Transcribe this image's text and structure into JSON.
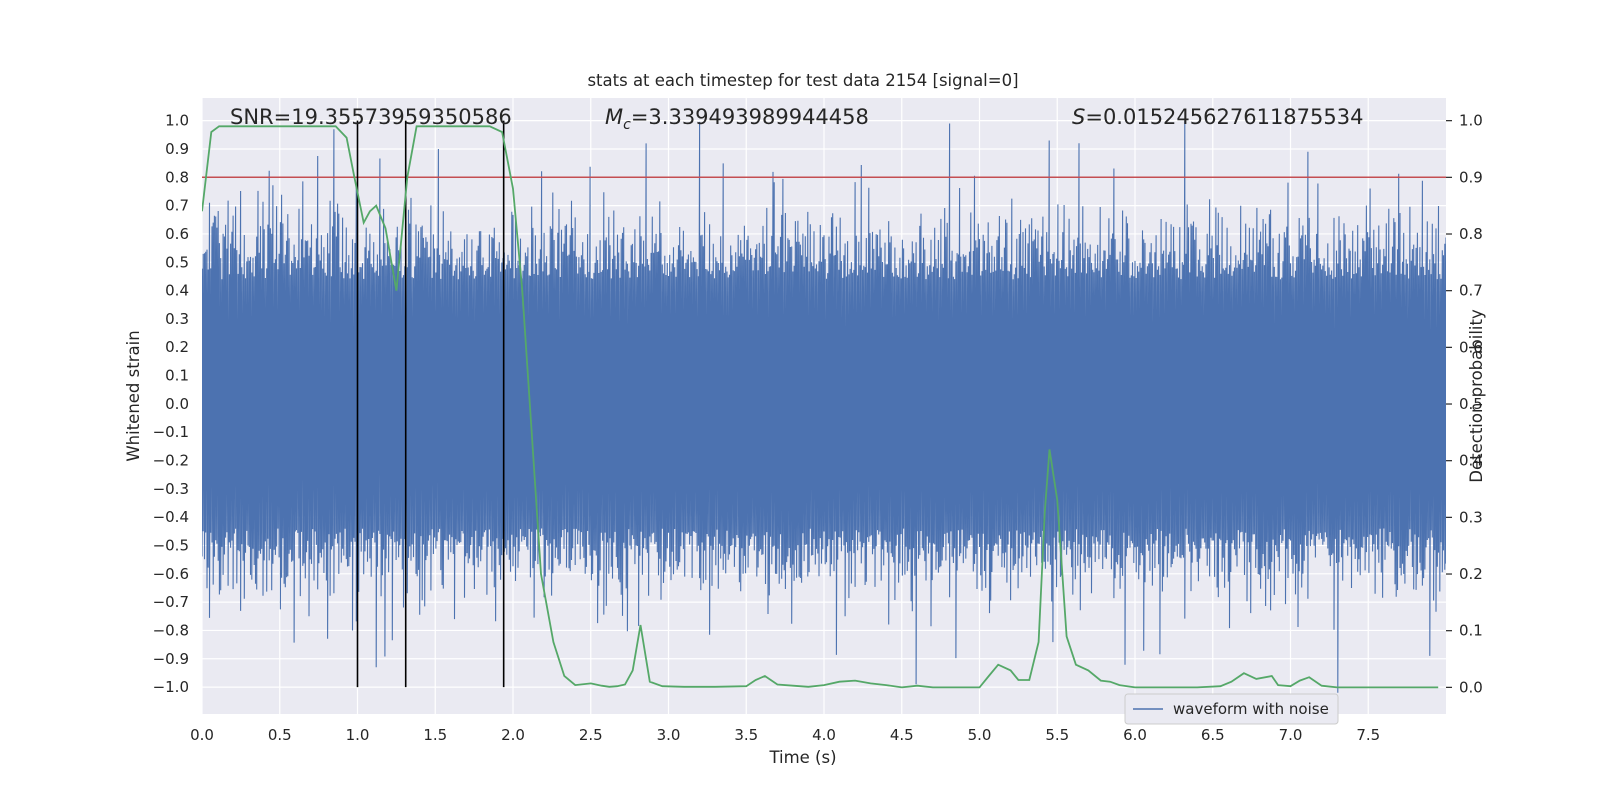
{
  "colors": {
    "background": "#eaeaf2",
    "grid": "#ffffff",
    "waveform": "#4c72b0",
    "probability": "#55a868",
    "threshold": "#c44e52",
    "markers": "#000000"
  },
  "chart_data": {
    "type": "line",
    "title": "stats at each timestep for test data 2154 [signal=0]",
    "xlabel": "Time (s)",
    "ylabel_left": "Whitened strain",
    "ylabel_right": "Detection probability",
    "xlim": [
      0.0,
      8.0
    ],
    "ylim_left": [
      -1.095,
      1.08
    ],
    "ylim_right": [
      -0.047,
      1.04
    ],
    "x_ticks": [
      "0.0",
      "0.5",
      "1.0",
      "1.5",
      "2.0",
      "2.5",
      "3.0",
      "3.5",
      "4.0",
      "4.5",
      "5.0",
      "5.5",
      "6.0",
      "6.5",
      "7.0",
      "7.5"
    ],
    "left_ticks": [
      "1.0",
      "0.9",
      "0.8",
      "0.7",
      "0.6",
      "0.5",
      "0.4",
      "0.3",
      "0.2",
      "0.1",
      "0.0",
      "−0.1",
      "−0.2",
      "−0.3",
      "−0.4",
      "−0.5",
      "−0.6",
      "−0.7",
      "−0.8",
      "−0.9",
      "−1.0"
    ],
    "right_ticks": [
      "1.0",
      "0.9",
      "0.8",
      "0.7",
      "0.6",
      "0.5",
      "0.4",
      "0.3",
      "0.2",
      "0.1",
      "0.0"
    ],
    "annotations": {
      "snr": "SNR=19.35573959350586",
      "mc_symbol": "M",
      "mc_sub": "c",
      "mc_value": "=3.339493989944458",
      "s_symbol": "S",
      "s_value": "=0.015245627611875534"
    },
    "legend": {
      "label": "waveform with noise",
      "placement": "lower-right"
    },
    "threshold_left": 0.8,
    "vertical_markers": [
      1.0,
      1.31,
      1.94
    ],
    "marker_range_left": [
      -1.0,
      1.0
    ],
    "waveform": {
      "name": "waveform with noise",
      "description": "whitened noise waveform, dense band of about +/-0.45 with spikes up to about +/-1.0",
      "dx": 0.008,
      "band_amplitude": 0.44,
      "notable_spikes": [
        {
          "t": 0.85,
          "v": 0.97
        },
        {
          "t": 0.97,
          "v": -0.8
        },
        {
          "t": 1.12,
          "v": -0.93
        },
        {
          "t": 4.59,
          "v": -0.99
        },
        {
          "t": 4.81,
          "v": 0.99
        },
        {
          "t": 5.45,
          "v": 0.93
        },
        {
          "t": 5.64,
          "v": 0.92
        },
        {
          "t": 7.3,
          "v": -1.02
        },
        {
          "t": 7.11,
          "v": 0.89
        }
      ]
    },
    "probability": {
      "name": "Detection probability",
      "x": [
        0.0,
        0.06,
        0.11,
        0.2,
        0.3,
        0.4,
        0.5,
        0.6,
        0.7,
        0.8,
        0.86,
        0.93,
        0.98,
        1.04,
        1.08,
        1.12,
        1.18,
        1.25,
        1.32,
        1.38,
        1.45,
        1.55,
        1.65,
        1.75,
        1.85,
        1.93,
        2.0,
        2.06,
        2.12,
        2.18,
        2.26,
        2.33,
        2.4,
        2.5,
        2.57,
        2.62,
        2.67,
        2.72,
        2.77,
        2.82,
        2.88,
        2.96,
        3.1,
        3.3,
        3.5,
        3.56,
        3.62,
        3.7,
        3.8,
        3.9,
        4.0,
        4.1,
        4.2,
        4.3,
        4.4,
        4.5,
        4.6,
        4.7,
        4.8,
        4.9,
        5.0,
        5.06,
        5.12,
        5.2,
        5.25,
        5.32,
        5.38,
        5.42,
        5.45,
        5.5,
        5.56,
        5.62,
        5.7,
        5.78,
        5.84,
        5.9,
        6.0,
        6.2,
        6.4,
        6.55,
        6.62,
        6.7,
        6.78,
        6.88,
        6.92,
        7.0,
        7.06,
        7.12,
        7.2,
        7.3,
        7.5,
        7.7,
        7.95
      ],
      "values": [
        0.84,
        0.98,
        0.99,
        0.99,
        0.99,
        0.99,
        0.99,
        0.99,
        0.99,
        0.99,
        0.99,
        0.97,
        0.9,
        0.82,
        0.84,
        0.85,
        0.81,
        0.7,
        0.9,
        0.99,
        0.99,
        0.99,
        0.99,
        0.99,
        0.99,
        0.98,
        0.88,
        0.7,
        0.45,
        0.2,
        0.08,
        0.02,
        0.004,
        0.007,
        0.003,
        0.001,
        0.002,
        0.005,
        0.03,
        0.11,
        0.01,
        0.002,
        0.001,
        0.001,
        0.002,
        0.013,
        0.02,
        0.005,
        0.003,
        0.001,
        0.004,
        0.01,
        0.012,
        0.007,
        0.004,
        0.0,
        0.003,
        0.0,
        0.0,
        0.0,
        0.0,
        0.02,
        0.04,
        0.03,
        0.013,
        0.013,
        0.08,
        0.31,
        0.42,
        0.33,
        0.09,
        0.04,
        0.03,
        0.012,
        0.01,
        0.004,
        0.0,
        0.0,
        0.0,
        0.002,
        0.01,
        0.025,
        0.015,
        0.02,
        0.004,
        0.002,
        0.012,
        0.018,
        0.003,
        0.0,
        0.0,
        0.0,
        0.0
      ]
    }
  }
}
